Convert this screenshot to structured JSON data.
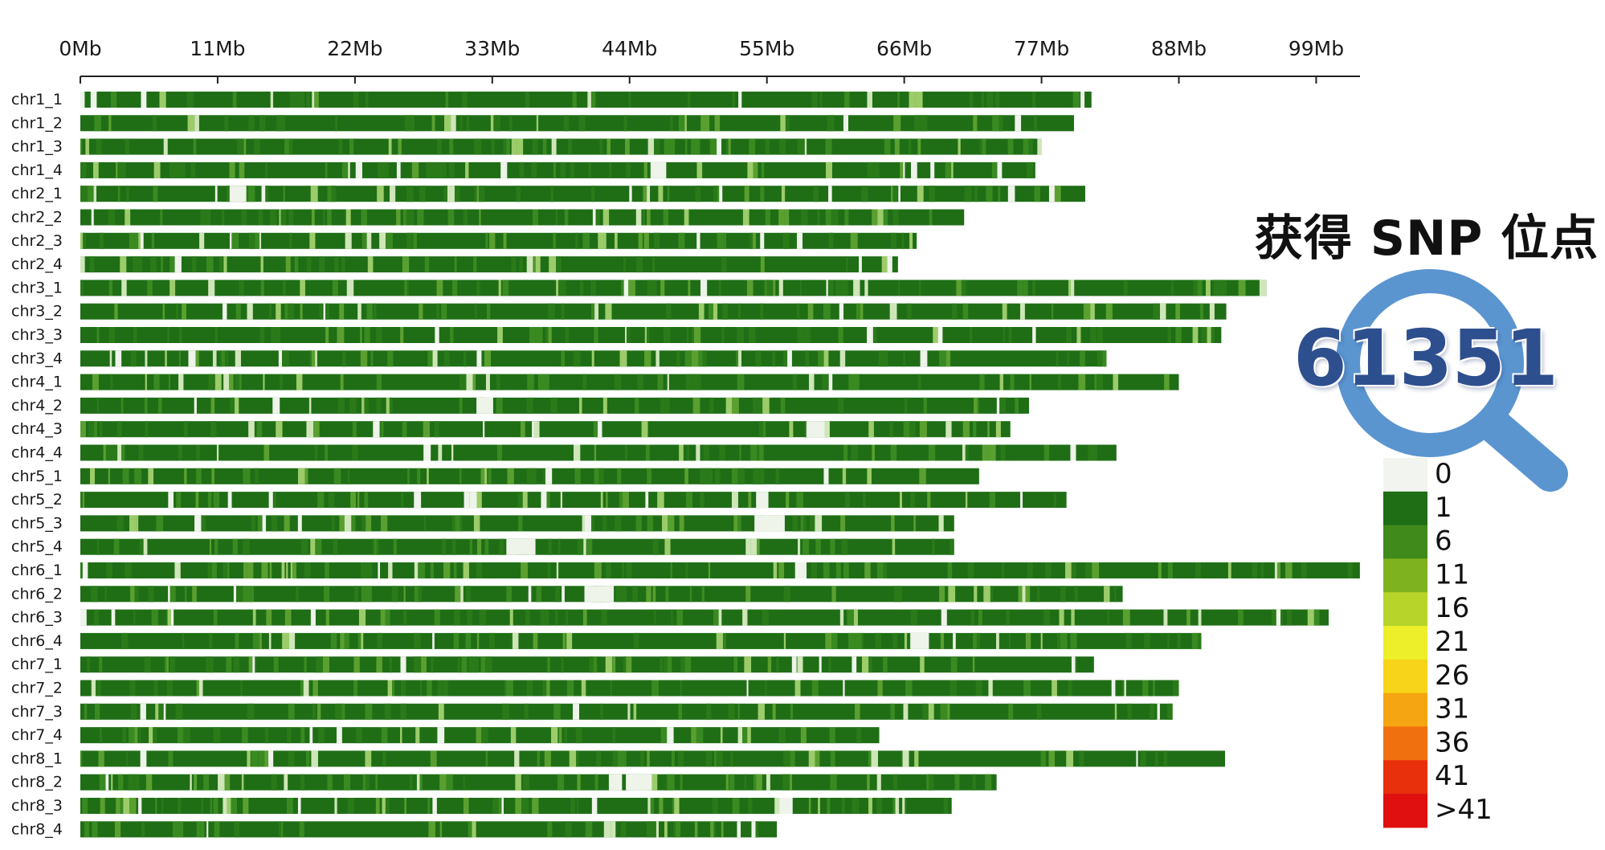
{
  "badge": {
    "title": "获得 SNP 位点",
    "count": "61351",
    "icon": "magnifier-icon",
    "icon_color": "#5b95d0"
  },
  "chart_data": {
    "type": "heatmap",
    "x_axis": {
      "unit": "Mb",
      "tick_values": [
        0,
        11,
        22,
        33,
        44,
        55,
        66,
        77,
        88,
        99
      ],
      "tick_labels": [
        "0Mb",
        "11Mb",
        "22Mb",
        "33Mb",
        "44Mb",
        "55Mb",
        "66Mb",
        "77Mb",
        "88Mb",
        "99Mb"
      ],
      "range": [
        0,
        102
      ]
    },
    "chromosomes": [
      {
        "name": "chr1_1",
        "length": 81.0
      },
      {
        "name": "chr1_2",
        "length": 79.6
      },
      {
        "name": "chr1_3",
        "length": 77.0
      },
      {
        "name": "chr1_4",
        "length": 76.5
      },
      {
        "name": "chr2_1",
        "length": 80.5
      },
      {
        "name": "chr2_2",
        "length": 70.8
      },
      {
        "name": "chr2_3",
        "length": 67.0
      },
      {
        "name": "chr2_4",
        "length": 65.5
      },
      {
        "name": "chr3_1",
        "length": 95.0
      },
      {
        "name": "chr3_2",
        "length": 91.8
      },
      {
        "name": "chr3_3",
        "length": 91.4
      },
      {
        "name": "chr3_4",
        "length": 82.2
      },
      {
        "name": "chr4_1",
        "length": 88.0
      },
      {
        "name": "chr4_2",
        "length": 76.0
      },
      {
        "name": "chr4_3",
        "length": 74.5
      },
      {
        "name": "chr4_4",
        "length": 83.0
      },
      {
        "name": "chr5_1",
        "length": 72.0
      },
      {
        "name": "chr5_2",
        "length": 79.0
      },
      {
        "name": "chr5_3",
        "length": 70.0
      },
      {
        "name": "chr5_4",
        "length": 70.0
      },
      {
        "name": "chr6_1",
        "length": 102.5
      },
      {
        "name": "chr6_2",
        "length": 83.5
      },
      {
        "name": "chr6_3",
        "length": 100.0
      },
      {
        "name": "chr6_4",
        "length": 89.8
      },
      {
        "name": "chr7_1",
        "length": 81.2
      },
      {
        "name": "chr7_2",
        "length": 88.0
      },
      {
        "name": "chr7_3",
        "length": 87.5
      },
      {
        "name": "chr7_4",
        "length": 64.0
      },
      {
        "name": "chr8_1",
        "length": 91.7
      },
      {
        "name": "chr8_2",
        "length": 73.4
      },
      {
        "name": "chr8_3",
        "length": 69.8
      },
      {
        "name": "chr8_4",
        "length": 55.8
      }
    ],
    "legend": {
      "labels": [
        "0",
        "1",
        "6",
        "11",
        "16",
        "21",
        "26",
        "31",
        "36",
        "41",
        ">41"
      ],
      "colors": [
        "#f2f5ef",
        "#1f6e16",
        "#3f8a1a",
        "#7fb21f",
        "#b7d42a",
        "#ecef2a",
        "#f7d419",
        "#f5a511",
        "#f06f0e",
        "#e8300c",
        "#e01010"
      ]
    },
    "density_palette": [
      "#1f6e16",
      "#2a7a1a",
      "#3a8a22",
      "#5aa030",
      "#9ccc6a",
      "#cfe6b8",
      "#eef4ea"
    ]
  }
}
